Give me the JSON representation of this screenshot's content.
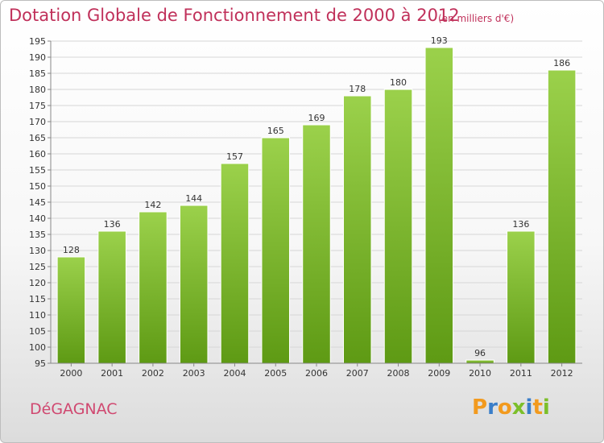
{
  "header": {
    "title": "Dotation Globale de Fonctionnement de 2000 à 2012",
    "subtitle": "(en milliers d'€)"
  },
  "footer": {
    "commune": "DéGAGNAC",
    "logo_text": "Proxiti"
  },
  "colors": {
    "title": "#c0305a",
    "bar_light": "#9bd14b",
    "bar_dark": "#5e9a14",
    "logo_orange": "#f29a1e",
    "logo_blue": "#3a7ec9",
    "logo_green": "#7cbf2a"
  },
  "chart_data": {
    "type": "bar",
    "title": "Dotation Globale de Fonctionnement de 2000 à 2012",
    "subtitle": "(en milliers d'€)",
    "xlabel": "",
    "ylabel": "",
    "categories": [
      "2000",
      "2001",
      "2002",
      "2003",
      "2004",
      "2005",
      "2006",
      "2007",
      "2008",
      "2009",
      "2010",
      "2011",
      "2012"
    ],
    "values": [
      128,
      136,
      142,
      144,
      157,
      165,
      169,
      178,
      180,
      193,
      96,
      136,
      186
    ],
    "ylim": [
      95,
      195
    ],
    "ytick_step": 5,
    "grid": true,
    "legend": "none"
  }
}
